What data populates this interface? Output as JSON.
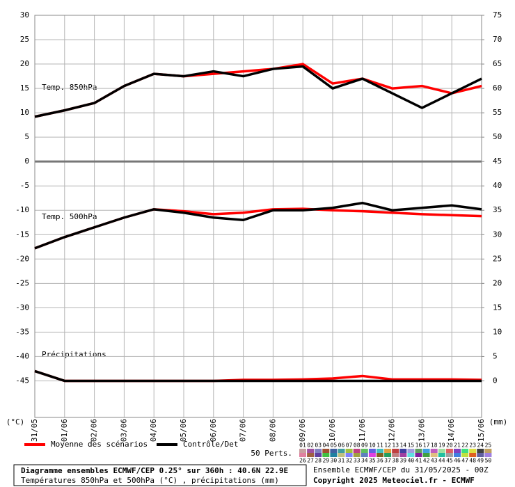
{
  "chart_data": {
    "type": "line",
    "categories": [
      "31/05",
      "01/06",
      "02/06",
      "03/06",
      "04/06",
      "05/06",
      "06/06",
      "07/06",
      "08/06",
      "09/06",
      "10/06",
      "11/06",
      "12/06",
      "13/06",
      "14/06",
      "15/06"
    ],
    "ylim": [
      -52.5,
      30
    ],
    "yticks": [
      30,
      25,
      20,
      15,
      10,
      5,
      0,
      -5,
      -10,
      -15,
      -20,
      -25,
      -30,
      -35,
      -40,
      -45
    ],
    "y2lim": [
      -7.5,
      75
    ],
    "y2ticks": [
      75,
      70,
      65,
      60,
      55,
      50,
      45,
      40,
      35,
      30,
      25,
      20,
      15,
      10,
      5,
      0
    ],
    "ylabel": "(°C)",
    "y2label": "(mm)",
    "grid": true,
    "annotations": [
      "Temp. 850hPa",
      "Temp. 500hPa",
      "Précipitations"
    ],
    "series": [
      {
        "name": "Moyenne des scénarios",
        "color": "#ff0000",
        "values": [
          9.2,
          10.5,
          12,
          15.5,
          18,
          17.5,
          18,
          18.5,
          19,
          20,
          16,
          17,
          15,
          15.5,
          14,
          15.5
        ]
      },
      {
        "name": "Contrôle/Det",
        "color": "#000000",
        "values": [
          9.2,
          10.5,
          12,
          15.5,
          18,
          17.5,
          18.5,
          17.5,
          19,
          19.5,
          15,
          17,
          14,
          11,
          14,
          17
        ]
      },
      {
        "name": "Moyenne des scénarios",
        "color": "#ff0000",
        "values": [
          -17.8,
          -15.5,
          -13.5,
          -11.5,
          -9.8,
          -10.2,
          -10.8,
          -10.5,
          -9.8,
          -9.7,
          -10,
          -10.2,
          -10.5,
          -10.8,
          -11,
          -11.2
        ]
      },
      {
        "name": "Contrôle/Det",
        "color": "#000000",
        "values": [
          -17.8,
          -15.5,
          -13.5,
          -11.5,
          -9.8,
          -10.5,
          -11.5,
          -12,
          -10,
          -10,
          -9.5,
          -8.5,
          -10,
          -9.5,
          -9,
          -9.8
        ]
      },
      {
        "name": "Moyenne des scénarios",
        "color": "#ff0000",
        "axis": "y2",
        "values": [
          2,
          0,
          0,
          0,
          0,
          0,
          0,
          0.2,
          0.2,
          0.3,
          0.5,
          1,
          0.3,
          0.3,
          0.3,
          0.2
        ]
      },
      {
        "name": "Contrôle/Det",
        "color": "#000000",
        "axis": "y2",
        "values": [
          2,
          0,
          0,
          0,
          0,
          0,
          0,
          0,
          0,
          0,
          0,
          0,
          0,
          0,
          0,
          0
        ]
      }
    ],
    "perts_label": "50 Perts.",
    "perts": [
      {
        "label": "01",
        "color": "#c8a0a0"
      },
      {
        "label": "02",
        "color": "#a050a0"
      },
      {
        "label": "03",
        "color": "#8080c0"
      },
      {
        "label": "04",
        "color": "#a05030"
      },
      {
        "label": "05",
        "color": "#4060a0"
      },
      {
        "label": "06",
        "color": "#40a0a0"
      },
      {
        "label": "07",
        "color": "#a0c040"
      },
      {
        "label": "08",
        "color": "#c04080"
      },
      {
        "label": "09",
        "color": "#60c060"
      },
      {
        "label": "10",
        "color": "#6060e0"
      },
      {
        "label": "11",
        "color": "#40c0c0"
      },
      {
        "label": "12",
        "color": "#e0a040"
      },
      {
        "label": "13",
        "color": "#c04040"
      },
      {
        "label": "14",
        "color": "#4040a0"
      },
      {
        "label": "15",
        "color": "#a0a0e0"
      },
      {
        "label": "16",
        "color": "#60a060"
      },
      {
        "label": "17",
        "color": "#40a0e0"
      },
      {
        "label": "18",
        "color": "#c060c0"
      },
      {
        "label": "19",
        "color": "#a0e0a0"
      },
      {
        "label": "20",
        "color": "#e06060"
      },
      {
        "label": "21",
        "color": "#8040c0"
      },
      {
        "label": "22",
        "color": "#40e080"
      },
      {
        "label": "23",
        "color": "#e0e040"
      },
      {
        "label": "24",
        "color": "#404040"
      },
      {
        "label": "25",
        "color": "#c0a060"
      },
      {
        "label": "26",
        "color": "#e080a0"
      },
      {
        "label": "27",
        "color": "#a06040"
      },
      {
        "label": "28",
        "color": "#6040a0"
      },
      {
        "label": "29",
        "color": "#40c040"
      },
      {
        "label": "30",
        "color": "#2080a0"
      },
      {
        "label": "31",
        "color": "#c0c080"
      },
      {
        "label": "32",
        "color": "#8080ff"
      },
      {
        "label": "33",
        "color": "#a0a040"
      },
      {
        "label": "34",
        "color": "#6080c0"
      },
      {
        "label": "35",
        "color": "#e040e0"
      },
      {
        "label": "36",
        "color": "#806020"
      },
      {
        "label": "37",
        "color": "#20a060"
      },
      {
        "label": "38",
        "color": "#c08080"
      },
      {
        "label": "39",
        "color": "#a040a0"
      },
      {
        "label": "40",
        "color": "#60e0e0"
      },
      {
        "label": "41",
        "color": "#8020a0"
      },
      {
        "label": "42",
        "color": "#40a040"
      },
      {
        "label": "43",
        "color": "#e0c080"
      },
      {
        "label": "44",
        "color": "#20c0a0"
      },
      {
        "label": "45",
        "color": "#a0a0a0"
      },
      {
        "label": "46",
        "color": "#4080e0"
      },
      {
        "label": "47",
        "color": "#c0e040"
      },
      {
        "label": "48",
        "color": "#e06020"
      },
      {
        "label": "49",
        "color": "#6060a0"
      },
      {
        "label": "50",
        "color": "#a080e0"
      }
    ],
    "footer": {
      "title": "Diagramme ensembles ECMWF/CEP 0.25° sur 360h : 40.6N 22.9E",
      "subtitle": "Températures 850hPa et 500hPa (°C) , précipitations (mm)",
      "run": "Ensemble ECMWF/CEP du 31/05/2025 - 00Z",
      "copyright": "Copyright 2025 Meteociel.fr - ECMWF"
    }
  }
}
